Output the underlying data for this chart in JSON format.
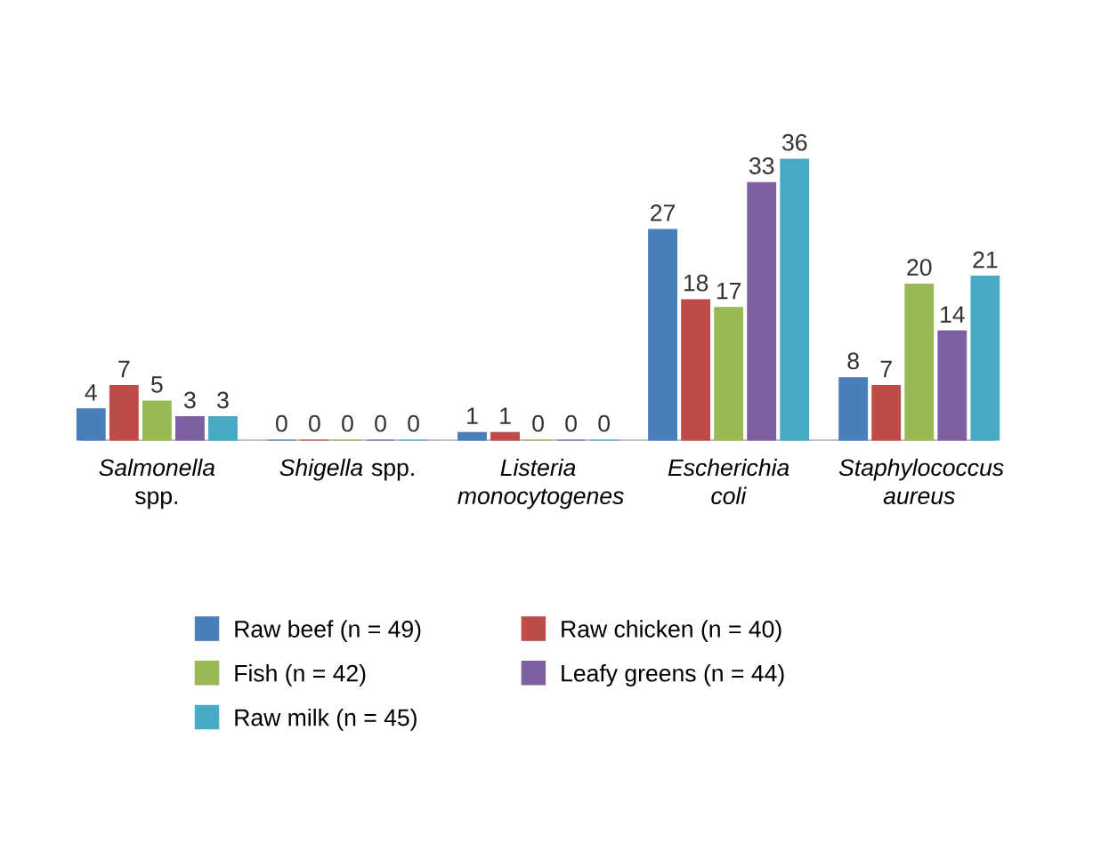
{
  "chart_data": {
    "type": "bar",
    "categories": [
      "*Salmonella* spp.",
      "*Shigella* spp.",
      "*Listeria monocytogenes*",
      "*Escherichia coli*",
      "*Staphylococcus aureus*"
    ],
    "series": [
      {
        "name": "Raw beef (n = 49)",
        "color": "#4a7ebb",
        "values": [
          4,
          0,
          1,
          27,
          8
        ]
      },
      {
        "name": "Raw chicken (n = 40)",
        "color": "#be4b48",
        "values": [
          7,
          0,
          1,
          18,
          7
        ]
      },
      {
        "name": "Fish (n = 42)",
        "color": "#98b954",
        "values": [
          5,
          0,
          0,
          17,
          20
        ]
      },
      {
        "name": "Leafy greens (n = 44)",
        "color": "#7d60a0",
        "values": [
          3,
          0,
          0,
          33,
          14
        ]
      },
      {
        "name": "Raw milk (n = 45)",
        "color": "#46aac5",
        "values": [
          3,
          0,
          0,
          36,
          21
        ]
      }
    ],
    "data_labels": true,
    "legend": "bottom"
  }
}
